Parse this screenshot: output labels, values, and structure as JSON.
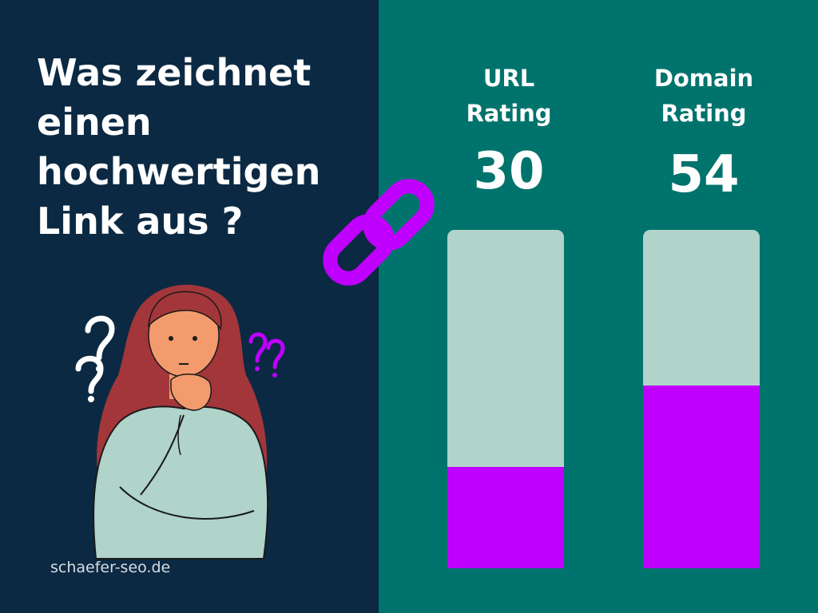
{
  "headline": [
    "Was zeichnet",
    "einen",
    "hochwertigen",
    "Link aus ?"
  ],
  "footer": "schaefer-seo.de",
  "colors": {
    "left_bg": "#0b2942",
    "right_bg": "#01736d",
    "bar_track": "#b0d3ca",
    "bar_fill": "#bf00ff",
    "accent_purple": "#bf00ff"
  },
  "icons": [
    "thinking-woman-illustration",
    "question-mark-icon",
    "chain-link-icon"
  ],
  "ratings": [
    {
      "label": [
        "URL",
        "Rating"
      ],
      "value": "30",
      "level_percent": 30
    },
    {
      "label": [
        "Domain",
        "Rating"
      ],
      "value": "54",
      "level_percent": 54
    }
  ]
}
